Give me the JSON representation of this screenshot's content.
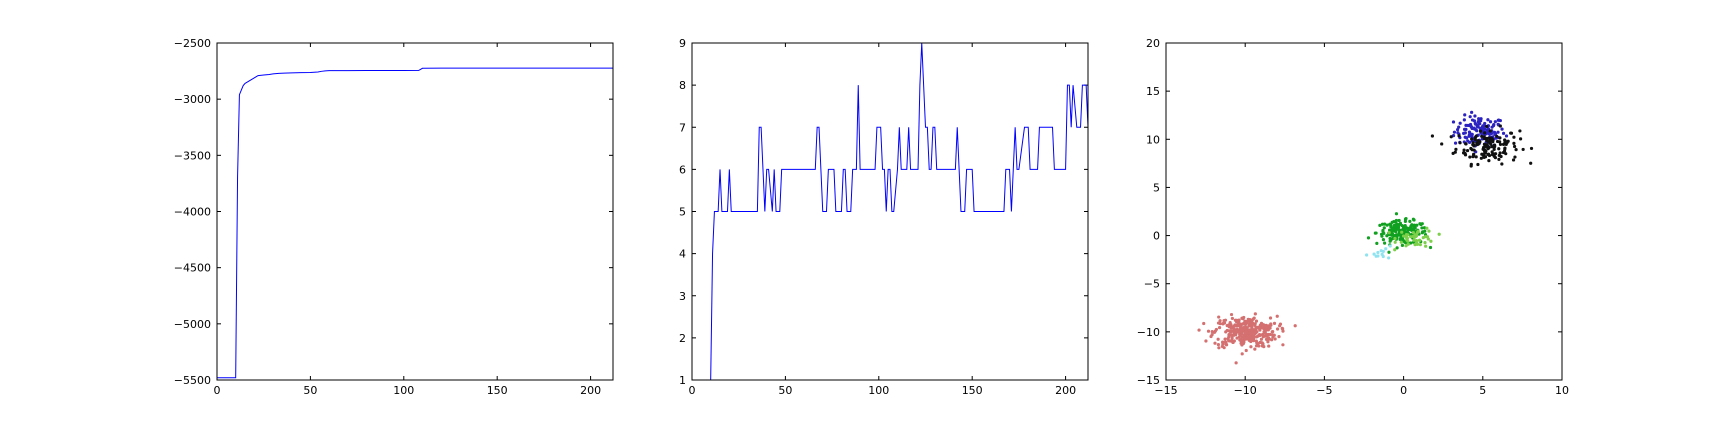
{
  "chart_data": [
    {
      "type": "line",
      "title": "",
      "xlabel": "",
      "ylabel": "",
      "xlim": [
        0,
        212
      ],
      "ylim": [
        -5500,
        -2500
      ],
      "xticks": [
        0,
        50,
        100,
        150,
        200
      ],
      "yticks": [
        -5500,
        -5000,
        -4500,
        -4000,
        -3500,
        -3000,
        -2500
      ],
      "xtick_labels": [
        "0",
        "50",
        "100",
        "150",
        "200"
      ],
      "ytick_labels": [
        "−5500",
        "−5000",
        "−4500",
        "−4000",
        "−3500",
        "−3000",
        "−2500"
      ],
      "series": [
        {
          "color": "#0000ff",
          "x": [
            0,
            10,
            11,
            12,
            13,
            14,
            15,
            16,
            17,
            18,
            19,
            20,
            21,
            22,
            25,
            28,
            30,
            33,
            36,
            40,
            45,
            50,
            54,
            56,
            58,
            60,
            70,
            80,
            90,
            100,
            108,
            110,
            120,
            140,
            160,
            180,
            200,
            212
          ],
          "y": [
            -5480,
            -5480,
            -3700,
            -2960,
            -2920,
            -2880,
            -2860,
            -2850,
            -2840,
            -2830,
            -2820,
            -2810,
            -2800,
            -2790,
            -2785,
            -2780,
            -2775,
            -2770,
            -2768,
            -2766,
            -2764,
            -2763,
            -2758,
            -2752,
            -2748,
            -2746,
            -2746,
            -2745,
            -2745,
            -2745,
            -2744,
            -2725,
            -2724,
            -2724,
            -2724,
            -2724,
            -2724,
            -2724
          ]
        }
      ]
    },
    {
      "type": "line",
      "title": "",
      "xlabel": "",
      "ylabel": "",
      "xlim": [
        0,
        212
      ],
      "ylim": [
        1,
        9
      ],
      "xticks": [
        0,
        50,
        100,
        150,
        200
      ],
      "yticks": [
        1,
        2,
        3,
        4,
        5,
        6,
        7,
        8,
        9
      ],
      "xtick_labels": [
        "0",
        "50",
        "100",
        "150",
        "200"
      ],
      "ytick_labels": [
        "1",
        "2",
        "3",
        "4",
        "5",
        "6",
        "7",
        "8",
        "9"
      ],
      "series": [
        {
          "color": "#0000ff",
          "x": [
            0,
            10,
            11,
            12,
            13,
            14,
            15,
            16,
            19,
            20,
            21,
            22,
            35,
            36,
            37,
            38,
            39,
            40,
            41,
            43,
            44,
            45,
            47,
            48,
            65,
            66,
            67,
            68,
            69,
            70,
            72,
            73,
            75,
            76,
            77,
            80,
            81,
            82,
            83,
            85,
            86,
            87,
            88,
            89,
            90,
            91,
            98,
            99,
            100,
            101,
            102,
            103,
            104,
            105,
            106,
            107,
            108,
            110,
            111,
            112,
            113,
            115,
            116,
            117,
            118,
            121,
            122,
            123,
            124,
            125,
            126,
            127,
            128,
            129,
            130,
            131,
            140,
            141,
            142,
            144,
            145,
            146,
            147,
            148,
            150,
            151,
            152,
            153,
            167,
            168,
            169,
            170,
            171,
            172,
            173,
            174,
            175,
            178,
            179,
            180,
            181,
            182,
            184,
            185,
            186,
            193,
            194,
            195,
            196,
            199,
            200,
            201,
            202,
            203,
            204,
            206,
            207,
            208,
            209,
            210,
            211,
            212
          ],
          "y": [
            1,
            1,
            4,
            5,
            5,
            5,
            6,
            5,
            5,
            6,
            5,
            5,
            5,
            7,
            7,
            6,
            5,
            6,
            6,
            5,
            6,
            5,
            5,
            6,
            6,
            6,
            7,
            7,
            6,
            5,
            5,
            6,
            6,
            6,
            5,
            5,
            6,
            6,
            5,
            5,
            6,
            6,
            6,
            8,
            6,
            6,
            6,
            7,
            7,
            7,
            6,
            6,
            5,
            6,
            6,
            5,
            5,
            6,
            7,
            6,
            6,
            6,
            7,
            6,
            6,
            6,
            8,
            9,
            8,
            7,
            7,
            6,
            6,
            7,
            7,
            6,
            6,
            6,
            7,
            5,
            5,
            5,
            6,
            6,
            6,
            5,
            5,
            5,
            5,
            6,
            6,
            6,
            5,
            6,
            7,
            6,
            6,
            7,
            7,
            7,
            6,
            6,
            6,
            6,
            7,
            7,
            6,
            6,
            6,
            6,
            6,
            8,
            8,
            7,
            8,
            7,
            7,
            7,
            8,
            8,
            8,
            7
          ],
          "note_unused": null
        }
      ]
    },
    {
      "type": "scatter",
      "title": "",
      "xlabel": "",
      "ylabel": "",
      "xlim": [
        -15,
        10
      ],
      "ylim": [
        -15,
        20
      ],
      "xticks": [
        -15,
        -10,
        -5,
        0,
        5,
        10
      ],
      "yticks": [
        -15,
        -10,
        -5,
        0,
        5,
        10,
        15,
        20
      ],
      "xtick_labels": [
        "−15",
        "−10",
        "−5",
        "0",
        "5",
        "10"
      ],
      "ytick_labels": [
        "−15",
        "−10",
        "−5",
        "0",
        "5",
        "10",
        "15",
        "20"
      ],
      "clusters": [
        {
          "color": "#2b22c0",
          "center": [
            4.8,
            10.8
          ],
          "spread": [
            0.8,
            0.8
          ],
          "count": 120
        },
        {
          "color": "#111111",
          "center": [
            5.3,
            9.3
          ],
          "spread": [
            1.0,
            0.9
          ],
          "count": 140
        },
        {
          "color": "#11a020",
          "center": [
            -0.1,
            0.3
          ],
          "spread": [
            0.8,
            0.6
          ],
          "count": 180
        },
        {
          "color": "#7ecf4a",
          "center": [
            0.8,
            -0.2
          ],
          "spread": [
            0.6,
            0.5
          ],
          "count": 45
        },
        {
          "color": "#8fe3f0",
          "center": [
            -1.2,
            -1.8
          ],
          "spread": [
            0.6,
            0.3
          ],
          "count": 12
        },
        {
          "color": "#d47070",
          "center": [
            -10.0,
            -10.0
          ],
          "spread": [
            1.0,
            0.8
          ],
          "count": 320
        }
      ]
    }
  ]
}
